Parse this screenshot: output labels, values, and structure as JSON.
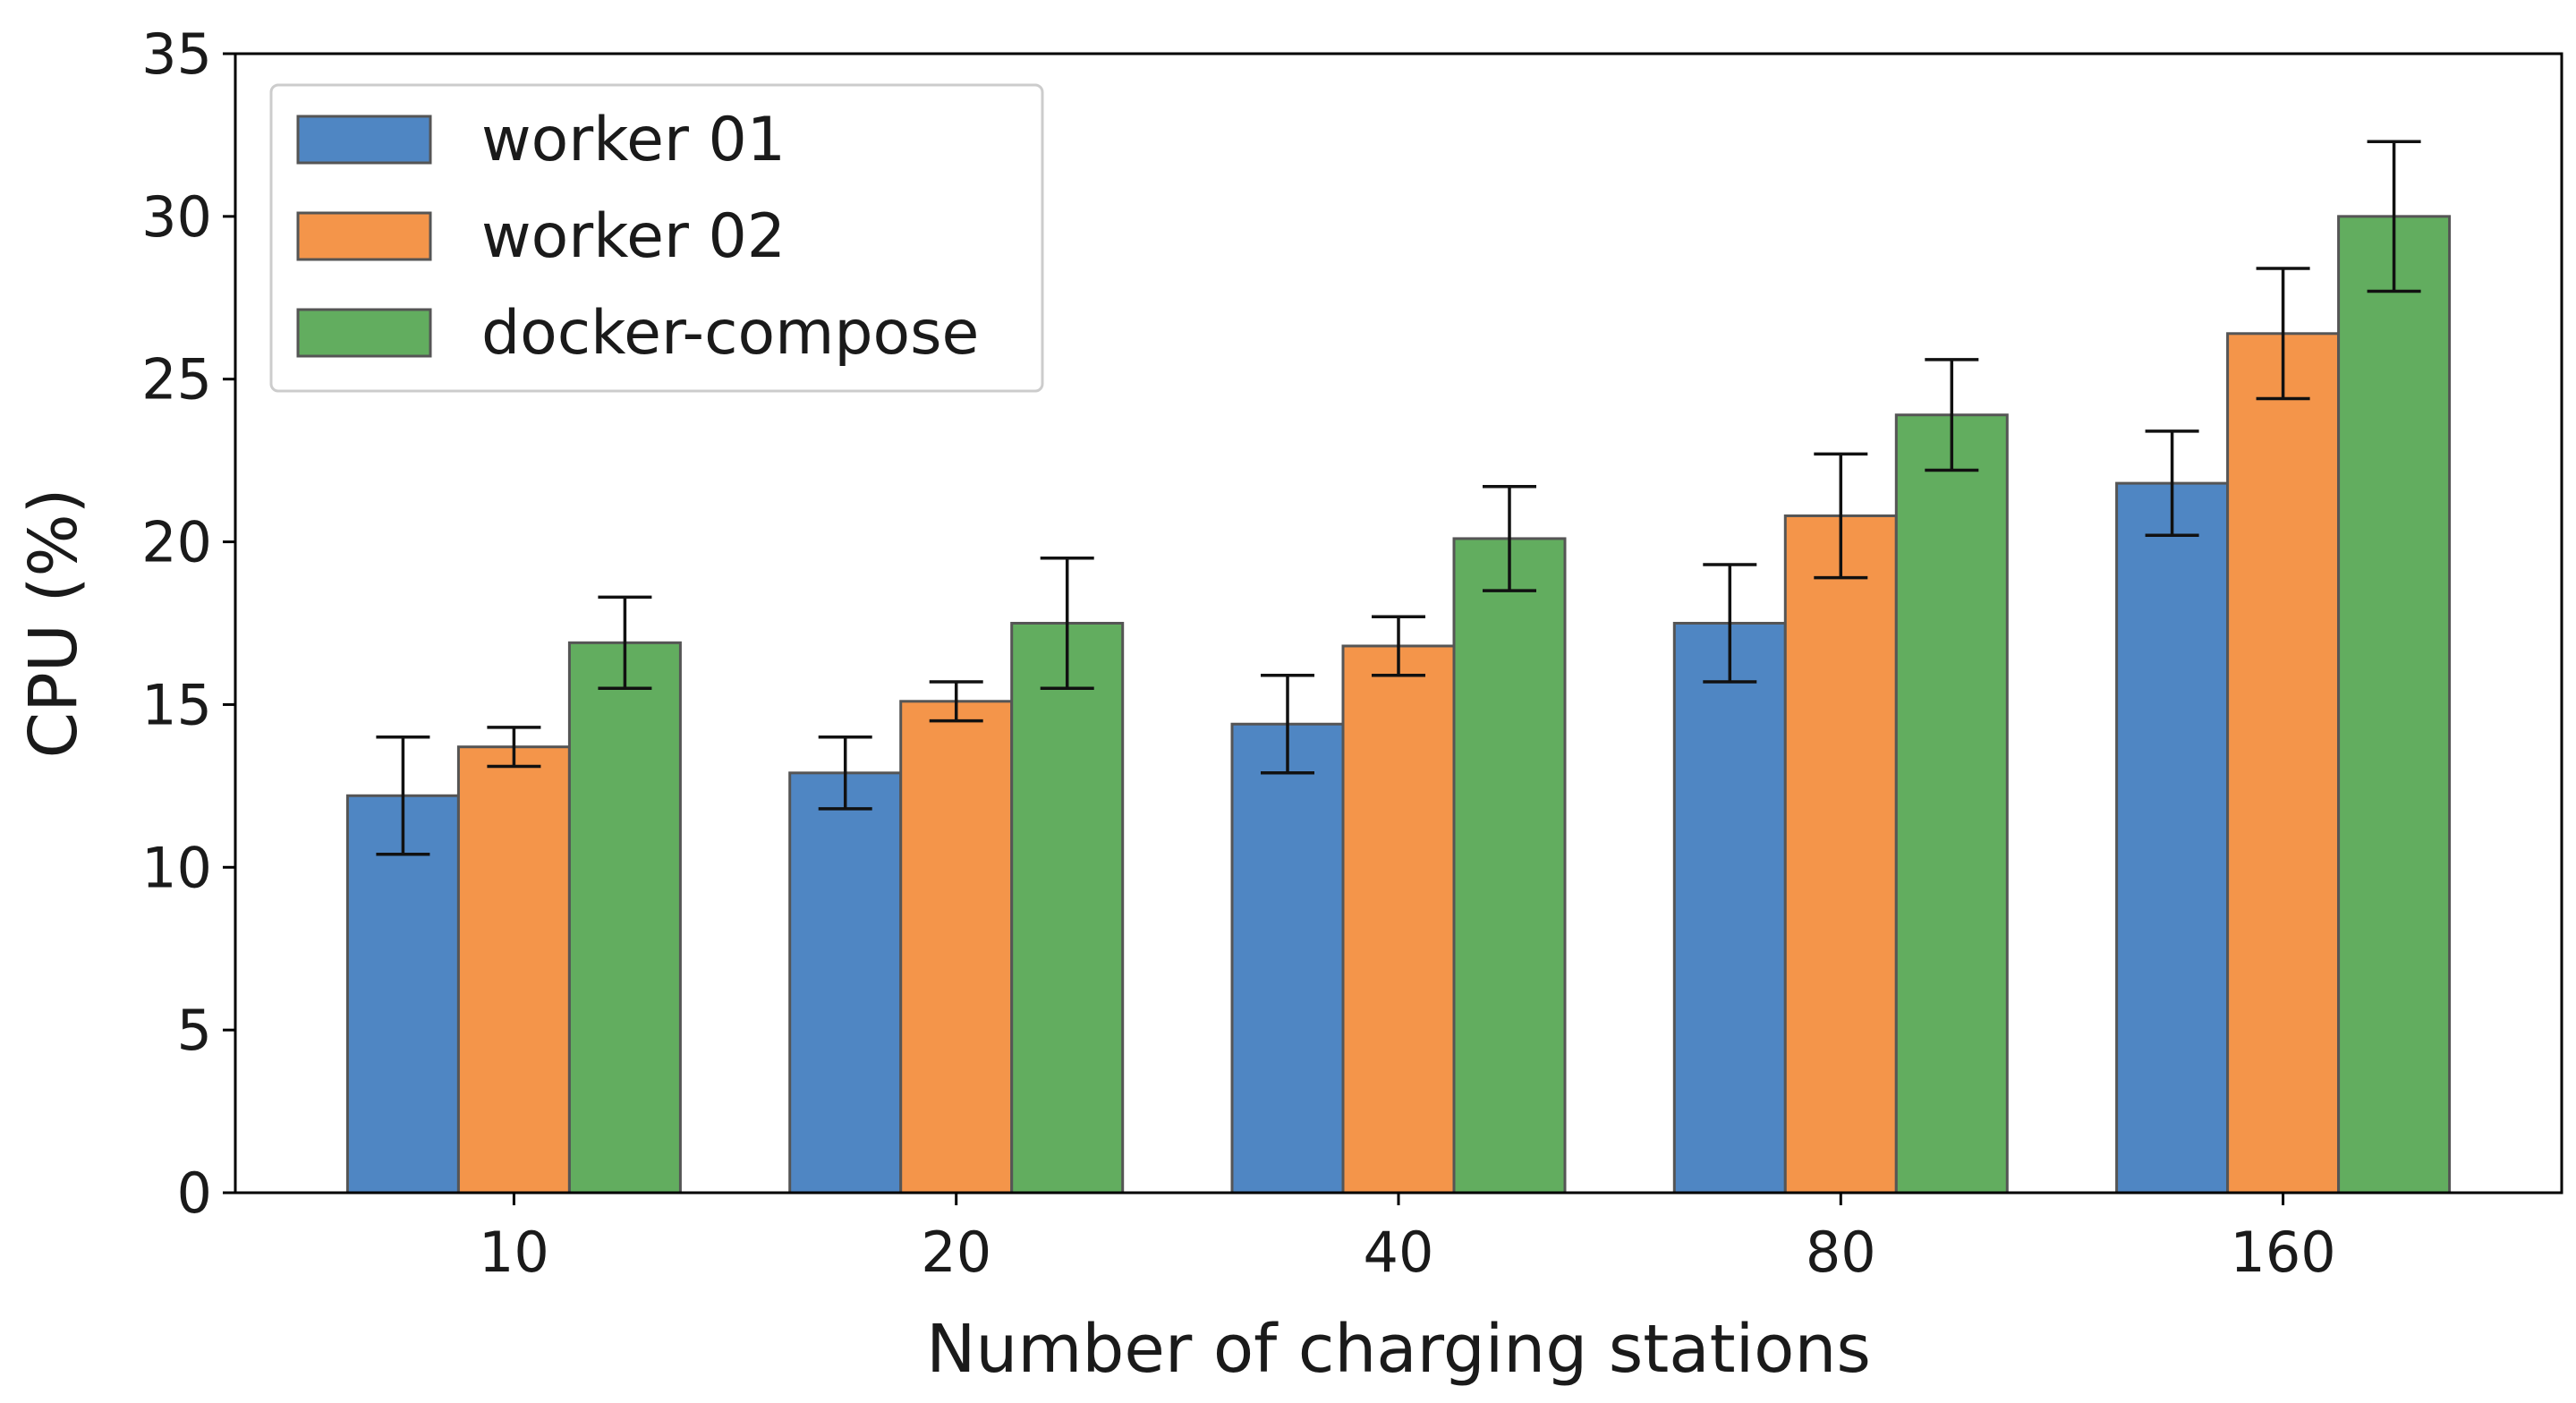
{
  "chart_data": {
    "type": "bar",
    "title": "",
    "xlabel": "Number of charging stations",
    "ylabel": "CPU (%)",
    "categories": [
      "10",
      "20",
      "40",
      "80",
      "160"
    ],
    "ylim": [
      0,
      35
    ],
    "yticks": [
      0,
      5,
      10,
      15,
      20,
      25,
      30,
      35
    ],
    "grid": false,
    "legend_position": "top-left",
    "series": [
      {
        "name": "worker 01",
        "color": "#4f86c3",
        "values": [
          12.2,
          12.9,
          14.4,
          17.5,
          21.8
        ],
        "errors": [
          1.8,
          1.1,
          1.5,
          1.8,
          1.6
        ]
      },
      {
        "name": "worker 02",
        "color": "#f4954a",
        "values": [
          13.7,
          15.1,
          16.8,
          20.8,
          26.4
        ],
        "errors": [
          0.6,
          0.6,
          0.9,
          1.9,
          2.0
        ]
      },
      {
        "name": "docker-compose",
        "color": "#62ad5f",
        "values": [
          16.9,
          17.5,
          20.1,
          23.9,
          30.0
        ],
        "errors": [
          1.4,
          2.0,
          1.6,
          1.7,
          2.3
        ]
      }
    ]
  }
}
